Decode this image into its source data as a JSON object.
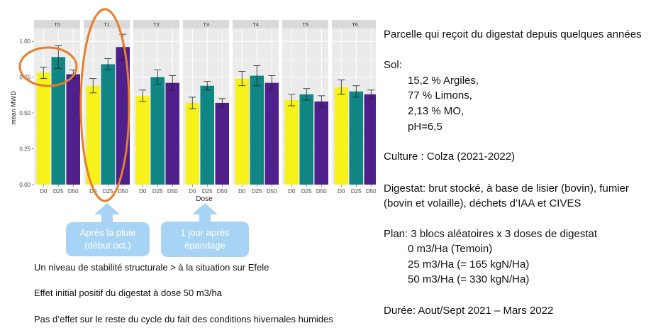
{
  "chart_data": {
    "type": "bar",
    "facets": [
      "T0",
      "T1",
      "T2",
      "T3",
      "T4",
      "T5",
      "T6"
    ],
    "categories": [
      "D0",
      "D25",
      "D50"
    ],
    "colors": [
      "#f7f21a",
      "#0f8584",
      "#4f1f8c"
    ],
    "xlabel": "Dose",
    "ylabel": "mean MWD",
    "ylim": [
      0,
      1.09
    ],
    "yticks": [
      "0.00",
      "0.25",
      "0.50",
      "0.75",
      "1.00"
    ],
    "values": [
      [
        0.78,
        0.89,
        0.77
      ],
      [
        0.69,
        0.84,
        0.96
      ],
      [
        0.62,
        0.75,
        0.71
      ],
      [
        0.57,
        0.69,
        0.57
      ],
      [
        0.74,
        0.76,
        0.71
      ],
      [
        0.59,
        0.63,
        0.58
      ],
      [
        0.68,
        0.65,
        0.63
      ]
    ],
    "errors": [
      [
        0.04,
        0.08,
        0.03
      ],
      [
        0.05,
        0.04,
        0.09
      ],
      [
        0.04,
        0.05,
        0.05
      ],
      [
        0.04,
        0.03,
        0.03
      ],
      [
        0.05,
        0.07,
        0.05
      ],
      [
        0.04,
        0.04,
        0.04
      ],
      [
        0.05,
        0.04,
        0.03
      ]
    ],
    "grid": true
  },
  "callouts": {
    "left": "Après la pluie (début oct.)",
    "right": "1 jour après épandage"
  },
  "notes": [
    "Un niveau de stabilité structurale > à la situation sur Efele",
    "Effet initial positif du digestat à dose 50 m3/ha",
    "Pas d’effet sur le reste du cycle du fait des conditions hivernales humides"
  ],
  "info": {
    "parcelle": "Parcelle qui reçoit du digestat depuis quelques années",
    "sol_title": "Sol:",
    "sol_items": [
      "15,2 % Argiles,",
      "77 % Limons,",
      "2,13 % MO,",
      "pH=6,5"
    ],
    "culture": "Culture : Colza (2021-2022)",
    "digestat_line1": "Digestat: brut stocké, à base de lisier (bovin), fumier",
    "digestat_line2": "(bovin et volaille), déchets d’IAA et CIVES",
    "plan_title": "Plan: 3 blocs aléatoires x 3 doses de digestat",
    "plan_items": [
      "0 m3/Ha (Temoin)",
      "25 m3/Ha (= 165 kgN/Ha)",
      "50 m3/Ha (= 330 kgN/Ha)"
    ],
    "duree": "Durée: Aout/Sept 2021 – Mars 2022"
  }
}
